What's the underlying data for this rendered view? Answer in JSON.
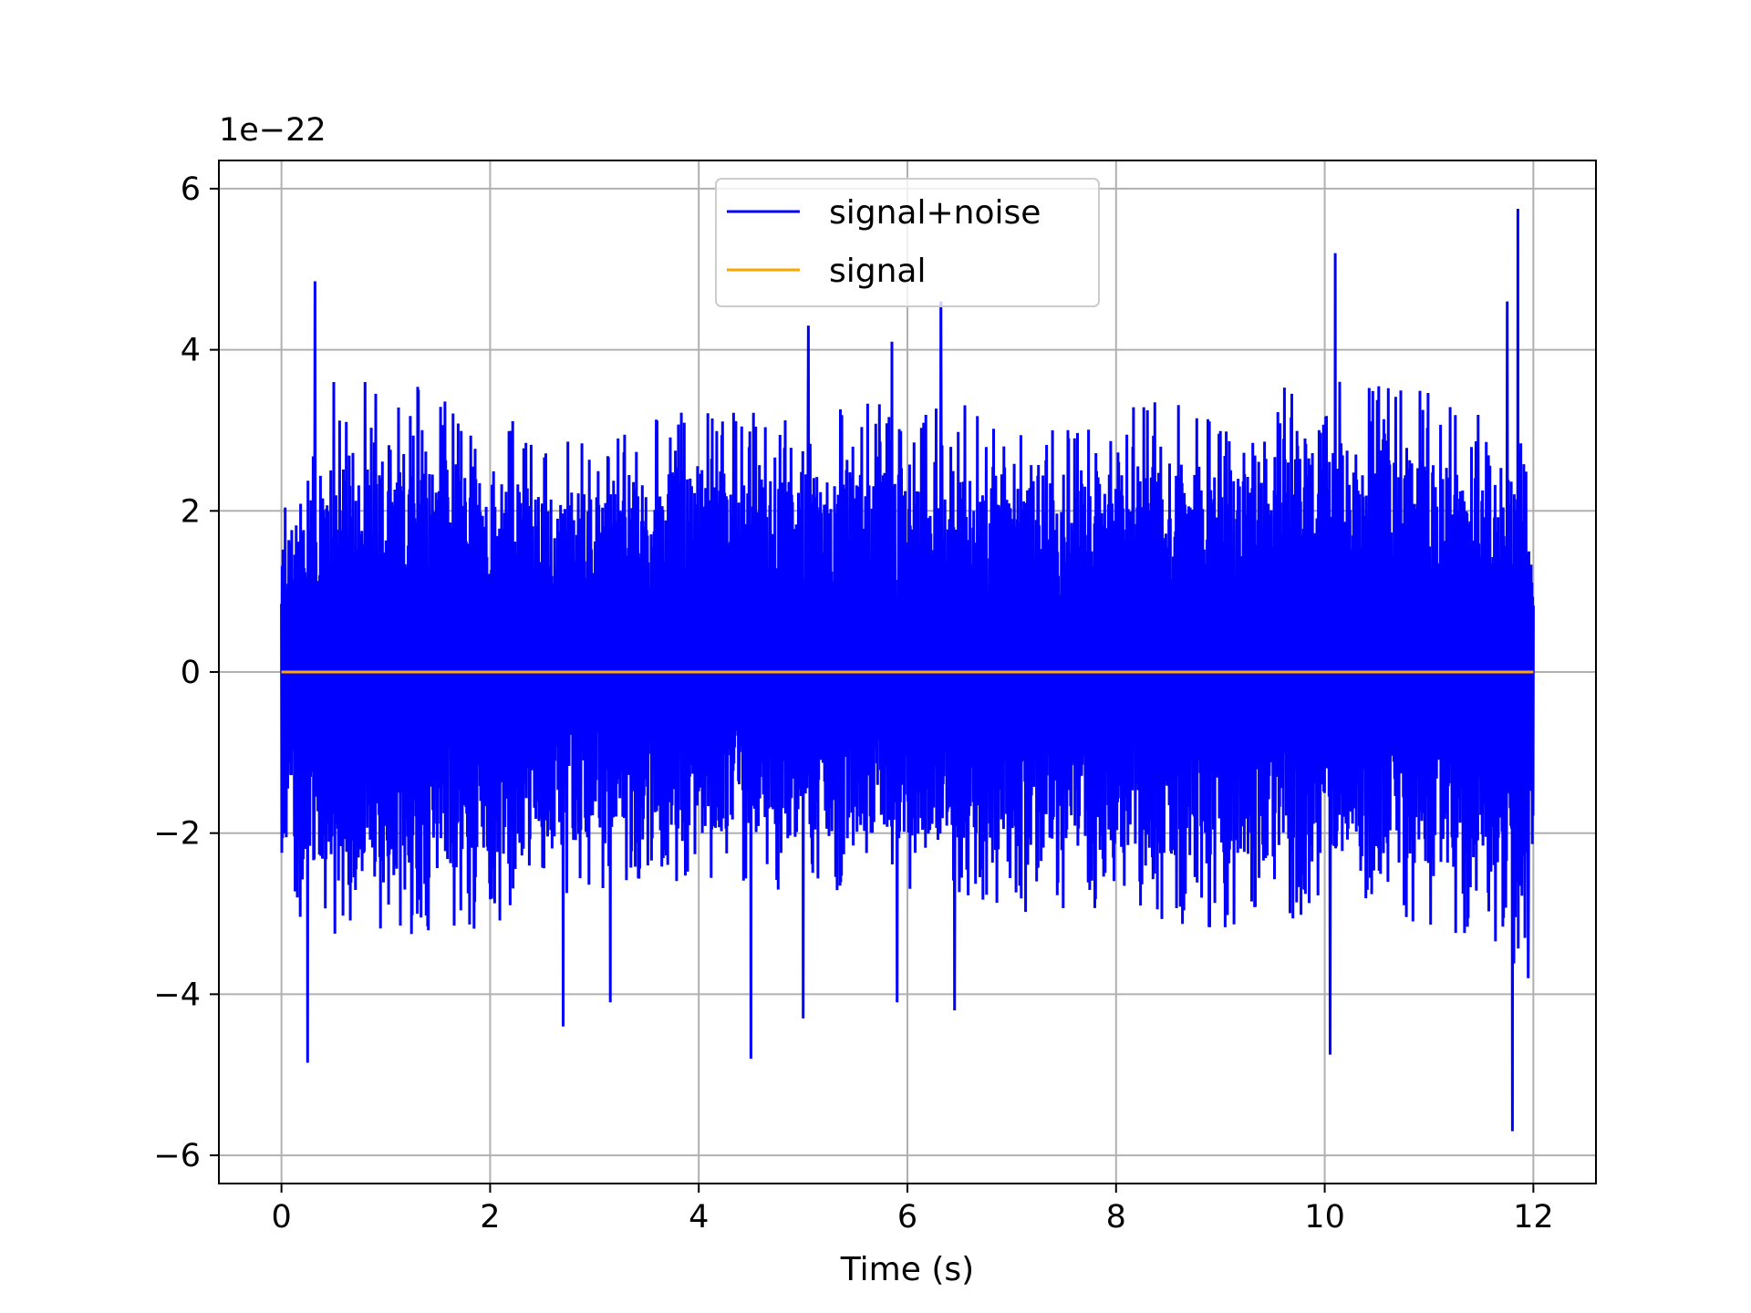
{
  "chart_data": {
    "type": "line",
    "title": "",
    "xlabel": "Time (s)",
    "ylabel": "",
    "y_offset_label": "1e−22",
    "xlim": [
      -0.6,
      12.6
    ],
    "ylim": [
      -6.35,
      6.35
    ],
    "x_ticks": [
      0,
      2,
      4,
      6,
      8,
      10,
      12
    ],
    "x_tick_labels": [
      "0",
      "2",
      "4",
      "6",
      "8",
      "10",
      "12"
    ],
    "y_ticks": [
      -6,
      -4,
      -2,
      0,
      2,
      4,
      6
    ],
    "y_tick_labels": [
      "−6",
      "−4",
      "−2",
      "0",
      "2",
      "4",
      "6"
    ],
    "grid": true,
    "legend_position": "upper-center",
    "series": [
      {
        "name": "signal+noise",
        "color": "#0000ff",
        "x_range": [
          0,
          12
        ],
        "envelope_min": [
          -3.0,
          -3.5,
          -3.2,
          -2.7,
          -2.6,
          -2.8,
          -2.7,
          -3.0,
          -3.0,
          -3.2,
          -3.0,
          -3.2,
          -3.8
        ],
        "envelope_max": [
          2.3,
          3.8,
          3.2,
          3.0,
          3.4,
          3.2,
          3.5,
          3.2,
          3.4,
          3.4,
          3.7,
          3.5,
          2.9
        ],
        "peaks": [
          {
            "x": 0.32,
            "y": 4.85
          },
          {
            "x": 0.25,
            "y": -4.85
          },
          {
            "x": 0.5,
            "y": 3.6
          },
          {
            "x": 0.8,
            "y": 3.6
          },
          {
            "x": 2.7,
            "y": -4.4
          },
          {
            "x": 3.15,
            "y": -4.1
          },
          {
            "x": 4.5,
            "y": -4.8
          },
          {
            "x": 5.05,
            "y": 4.3
          },
          {
            "x": 5.0,
            "y": -4.3
          },
          {
            "x": 5.85,
            "y": 4.1
          },
          {
            "x": 5.9,
            "y": -4.1
          },
          {
            "x": 6.32,
            "y": 4.6
          },
          {
            "x": 6.45,
            "y": -4.2
          },
          {
            "x": 10.1,
            "y": 5.2
          },
          {
            "x": 10.05,
            "y": -4.75
          },
          {
            "x": 11.75,
            "y": 4.6
          },
          {
            "x": 11.85,
            "y": 5.75
          },
          {
            "x": 11.8,
            "y": -5.7
          },
          {
            "x": 11.95,
            "y": -3.8
          }
        ]
      },
      {
        "name": "signal",
        "color": "#ffa500",
        "x": [
          0,
          12
        ],
        "y": [
          0,
          0
        ]
      }
    ]
  }
}
